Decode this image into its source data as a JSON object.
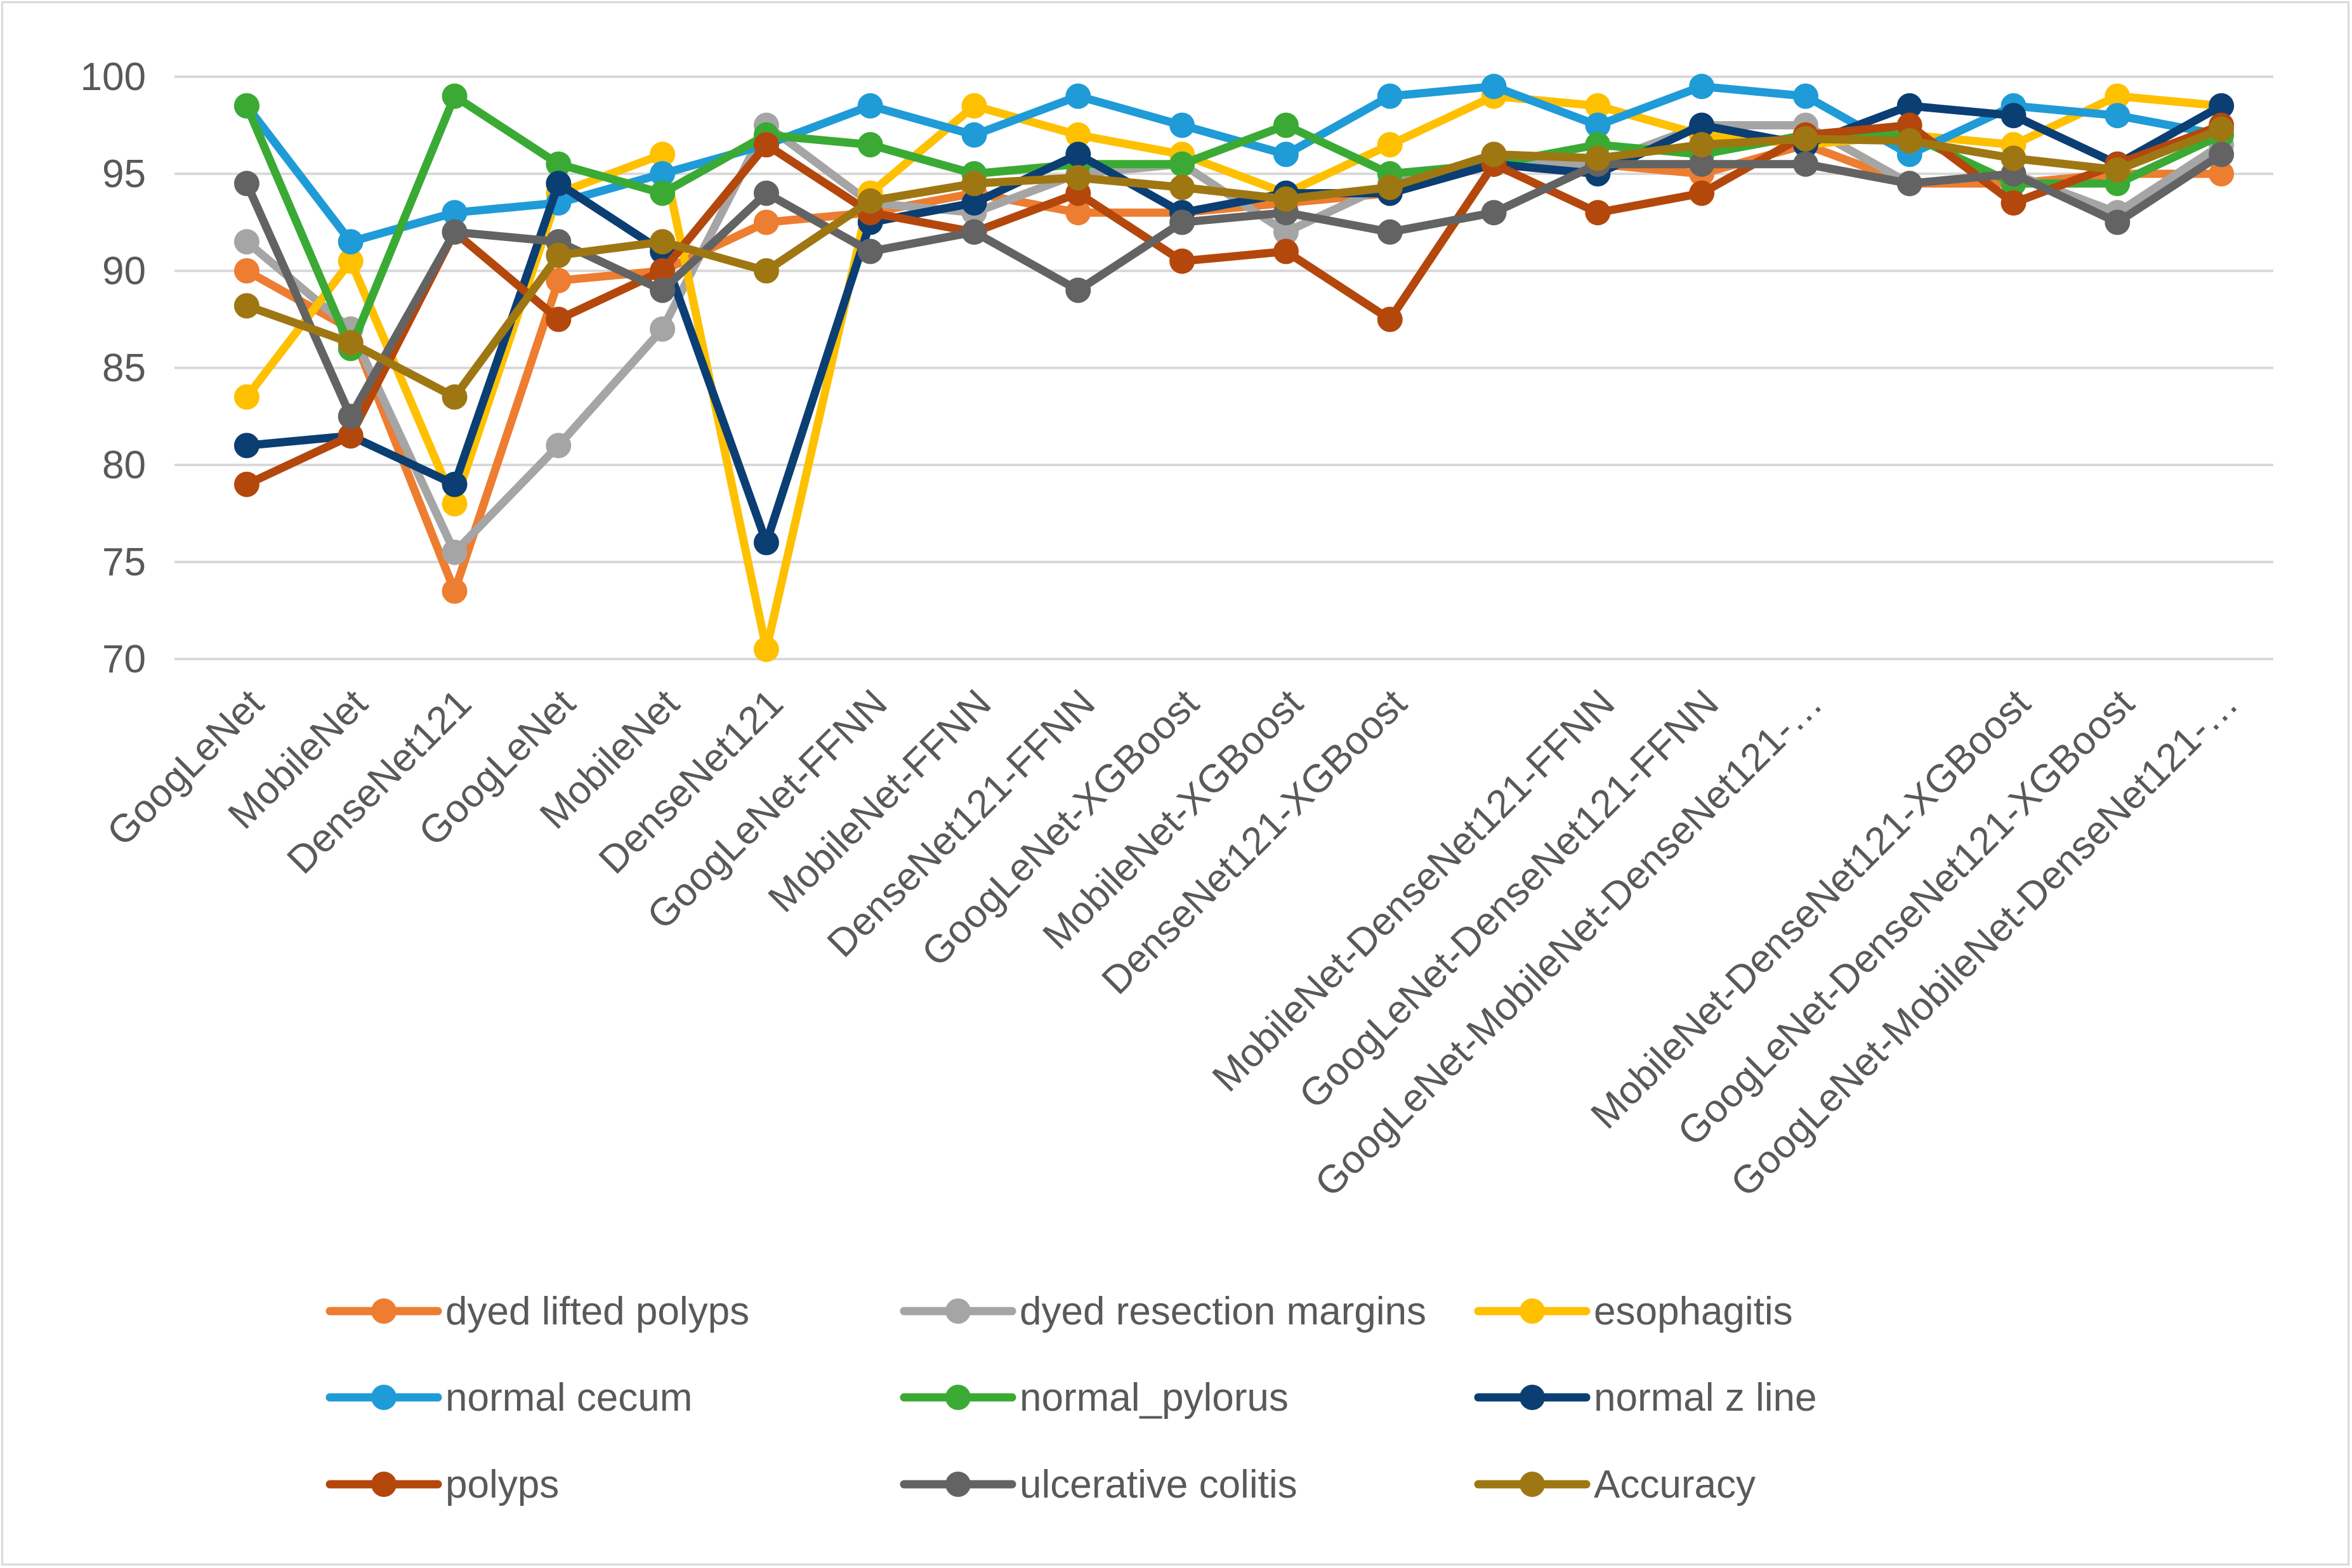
{
  "chart_data": {
    "type": "line",
    "ylim": [
      70,
      100
    ],
    "yticks": [
      70,
      75,
      80,
      85,
      90,
      95,
      100
    ],
    "grid": true,
    "legend_position": "bottom",
    "categories": [
      "GoogLeNet",
      "MobileNet",
      "DenseNet121",
      "GoogLeNet",
      "MobileNet",
      "DenseNet121",
      "GoogLeNet-FFNN",
      "MobileNet-FFNN",
      "DenseNet121-FFNN",
      "GoogLeNet-XGBoost",
      "MobileNet-XGBoost",
      "DenseNet121-XGBoost",
      "",
      "MobileNet-DenseNet121-FFNN",
      "GoogLeNet-DenseNet121-FFNN",
      "GoogLeNet-MobileNet-DenseNet121-…",
      "",
      "MobileNet-DenseNet121-XGBoost",
      "GoogLeNet-DenseNet121-XGBoost",
      "GoogLeNet-MobileNet-DenseNet121-…"
    ],
    "series": [
      {
        "name": "dyed lifted polyps",
        "color": "#ED7D31",
        "values": [
          90,
          87,
          73.5,
          89.5,
          90,
          92.5,
          93,
          94,
          93,
          93,
          93.5,
          94,
          95.5,
          95.5,
          95,
          96.5,
          94.5,
          94.5,
          95,
          95
        ]
      },
      {
        "name": "dyed resection margins",
        "color": "#A5A5A5",
        "values": [
          91.5,
          87,
          75.5,
          81,
          87,
          97.5,
          93.5,
          93,
          95,
          95.5,
          92,
          94.5,
          95.5,
          95.5,
          97.5,
          97.5,
          94.5,
          95,
          93,
          96.5
        ]
      },
      {
        "name": "esophagitis",
        "color": "#FFC000",
        "values": [
          83.5,
          90.5,
          78,
          94,
          96,
          70.5,
          94,
          98.5,
          97,
          96,
          94,
          96.5,
          99,
          98.5,
          97,
          96.5,
          97,
          96.5,
          99,
          98.5
        ]
      },
      {
        "name": "normal cecum",
        "color": "#1F9BD7",
        "values": [
          98.5,
          91.5,
          93,
          93.5,
          95,
          96.5,
          98.5,
          97,
          99,
          97.5,
          96,
          99,
          99.5,
          97.5,
          99.5,
          99,
          96,
          98.5,
          98,
          97
        ]
      },
      {
        "name": "normal_pylorus",
        "color": "#3AAA35",
        "values": [
          98.5,
          86,
          99,
          95.5,
          94,
          97,
          96.5,
          95,
          95.5,
          95.5,
          97.5,
          95,
          95.5,
          96.5,
          96,
          97,
          97,
          94.5,
          94.5,
          97
        ]
      },
      {
        "name": "normal z line",
        "color": "#0B3E73",
        "values": [
          81,
          81.5,
          79,
          94.5,
          91,
          76,
          92.5,
          93.5,
          96,
          93,
          94,
          94,
          95.5,
          95,
          97.5,
          96.5,
          98.5,
          98,
          95.5,
          98.5
        ]
      },
      {
        "name": "polyps",
        "color": "#B4470C",
        "values": [
          79,
          81.5,
          92,
          87.5,
          90,
          96.5,
          93,
          92,
          94,
          90.5,
          91,
          87.5,
          95.5,
          93,
          94,
          97,
          97.5,
          93.5,
          95.5,
          97.5
        ]
      },
      {
        "name": "ulcerative colitis",
        "color": "#636363",
        "values": [
          94.5,
          82.5,
          92,
          91.5,
          89,
          94,
          91,
          92,
          89,
          92.5,
          93,
          92,
          93,
          95.5,
          95.5,
          95.5,
          94.5,
          95,
          92.5,
          96
        ]
      },
      {
        "name": "Accuracy",
        "color": "#9E7713",
        "values": [
          88.2,
          86.3,
          83.5,
          90.8,
          91.5,
          90,
          93.6,
          94.5,
          94.8,
          94.3,
          93.7,
          94.3,
          96,
          95.8,
          96.5,
          96.8,
          96.7,
          95.8,
          95.2,
          97.3
        ]
      }
    ]
  }
}
